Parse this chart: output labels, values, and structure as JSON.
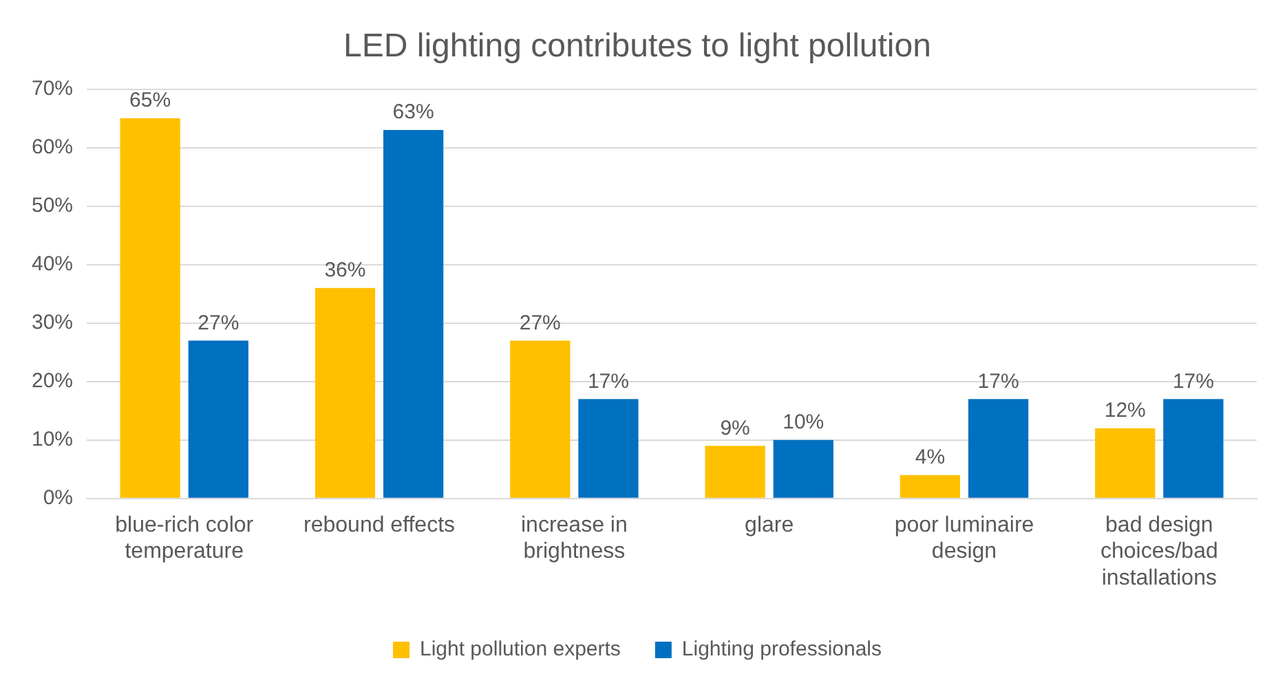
{
  "chart_data": {
    "type": "bar",
    "title": "LED lighting contributes to light pollution",
    "categories": [
      "blue-rich color temperature",
      "rebound effects",
      "increase in brightness",
      "glare",
      "poor luminaire design",
      "bad design choices/bad installations"
    ],
    "series": [
      {
        "name": "Light pollution experts",
        "color": "#ffc000",
        "values": [
          65,
          36,
          27,
          9,
          4,
          12
        ],
        "value_labels": [
          "65%",
          "36%",
          "27%",
          "9%",
          "4%",
          "12%"
        ]
      },
      {
        "name": "Lighting professionals",
        "color": "#0070c0",
        "values": [
          27,
          63,
          17,
          10,
          17,
          17
        ],
        "value_labels": [
          "27%",
          "63%",
          "17%",
          "10%",
          "17%",
          "17%"
        ]
      }
    ],
    "ylim": [
      0,
      70
    ],
    "yticks": [
      {
        "value": 0,
        "label": "0%"
      },
      {
        "value": 10,
        "label": "10%"
      },
      {
        "value": 20,
        "label": "20%"
      },
      {
        "value": 30,
        "label": "30%"
      },
      {
        "value": 40,
        "label": "40%"
      },
      {
        "value": 50,
        "label": "50%"
      },
      {
        "value": 60,
        "label": "60%"
      },
      {
        "value": 70,
        "label": "70%"
      }
    ],
    "grid": "y",
    "legend": "bottom"
  }
}
